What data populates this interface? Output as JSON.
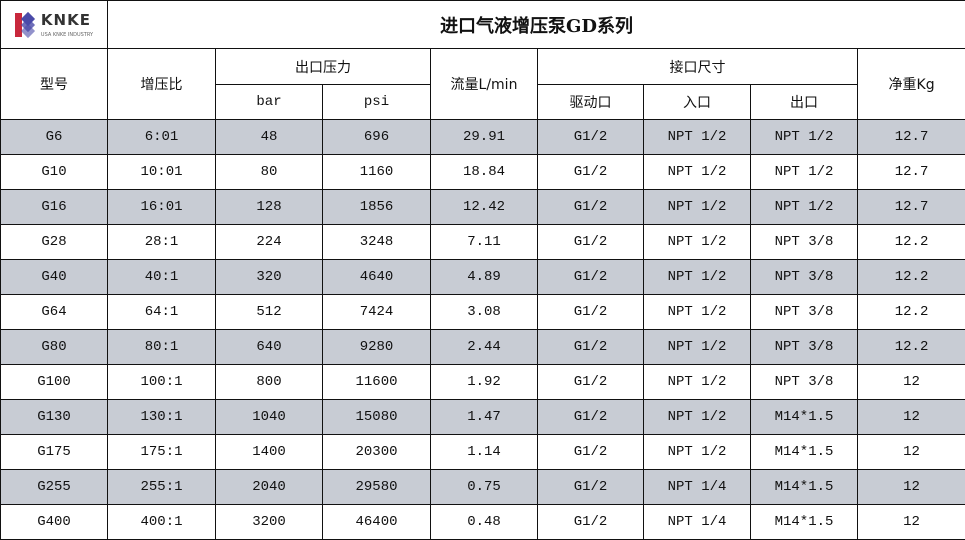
{
  "logo": {
    "name": "KNKE",
    "sub": "USA KNKE INDUSTRY",
    "colors": {
      "red": "#c8283c",
      "blue": "#4a4aa8"
    }
  },
  "title": "进口气液增压泵GD系列",
  "headers": {
    "model": "型号",
    "ratio": "增压比",
    "outlet_pressure": "出口压力",
    "bar": "bar",
    "psi": "psi",
    "flow": "流量L/min",
    "port_size": "接口尺寸",
    "drive_port": "驱动口",
    "inlet": "入口",
    "outlet": "出口",
    "net_weight": "净重Kg"
  },
  "shade_color": "#c8ccd4",
  "rows": [
    [
      "G6",
      "6:01",
      "48",
      "696",
      "29.91",
      "G1/2",
      "NPT 1/2",
      "NPT 1/2",
      "12.7"
    ],
    [
      "G10",
      "10:01",
      "80",
      "1160",
      "18.84",
      "G1/2",
      "NPT 1/2",
      "NPT 1/2",
      "12.7"
    ],
    [
      "G16",
      "16:01",
      "128",
      "1856",
      "12.42",
      "G1/2",
      "NPT 1/2",
      "NPT 1/2",
      "12.7"
    ],
    [
      "G28",
      "28:1",
      "224",
      "3248",
      "7.11",
      "G1/2",
      "NPT 1/2",
      "NPT 3/8",
      "12.2"
    ],
    [
      "G40",
      "40:1",
      "320",
      "4640",
      "4.89",
      "G1/2",
      "NPT 1/2",
      "NPT 3/8",
      "12.2"
    ],
    [
      "G64",
      "64:1",
      "512",
      "7424",
      "3.08",
      "G1/2",
      "NPT 1/2",
      "NPT 3/8",
      "12.2"
    ],
    [
      "G80",
      "80:1",
      "640",
      "9280",
      "2.44",
      "G1/2",
      "NPT 1/2",
      "NPT 3/8",
      "12.2"
    ],
    [
      "G100",
      "100:1",
      "800",
      "11600",
      "1.92",
      "G1/2",
      "NPT 1/2",
      "NPT 3/8",
      "12"
    ],
    [
      "G130",
      "130:1",
      "1040",
      "15080",
      "1.47",
      "G1/2",
      "NPT 1/2",
      "M14*1.5",
      "12"
    ],
    [
      "G175",
      "175:1",
      "1400",
      "20300",
      "1.14",
      "G1/2",
      "NPT 1/2",
      "M14*1.5",
      "12"
    ],
    [
      "G255",
      "255:1",
      "2040",
      "29580",
      "0.75",
      "G1/2",
      "NPT 1/4",
      "M14*1.5",
      "12"
    ],
    [
      "G400",
      "400:1",
      "3200",
      "46400",
      "0.48",
      "G1/2",
      "NPT 1/4",
      "M14*1.5",
      "12"
    ]
  ]
}
